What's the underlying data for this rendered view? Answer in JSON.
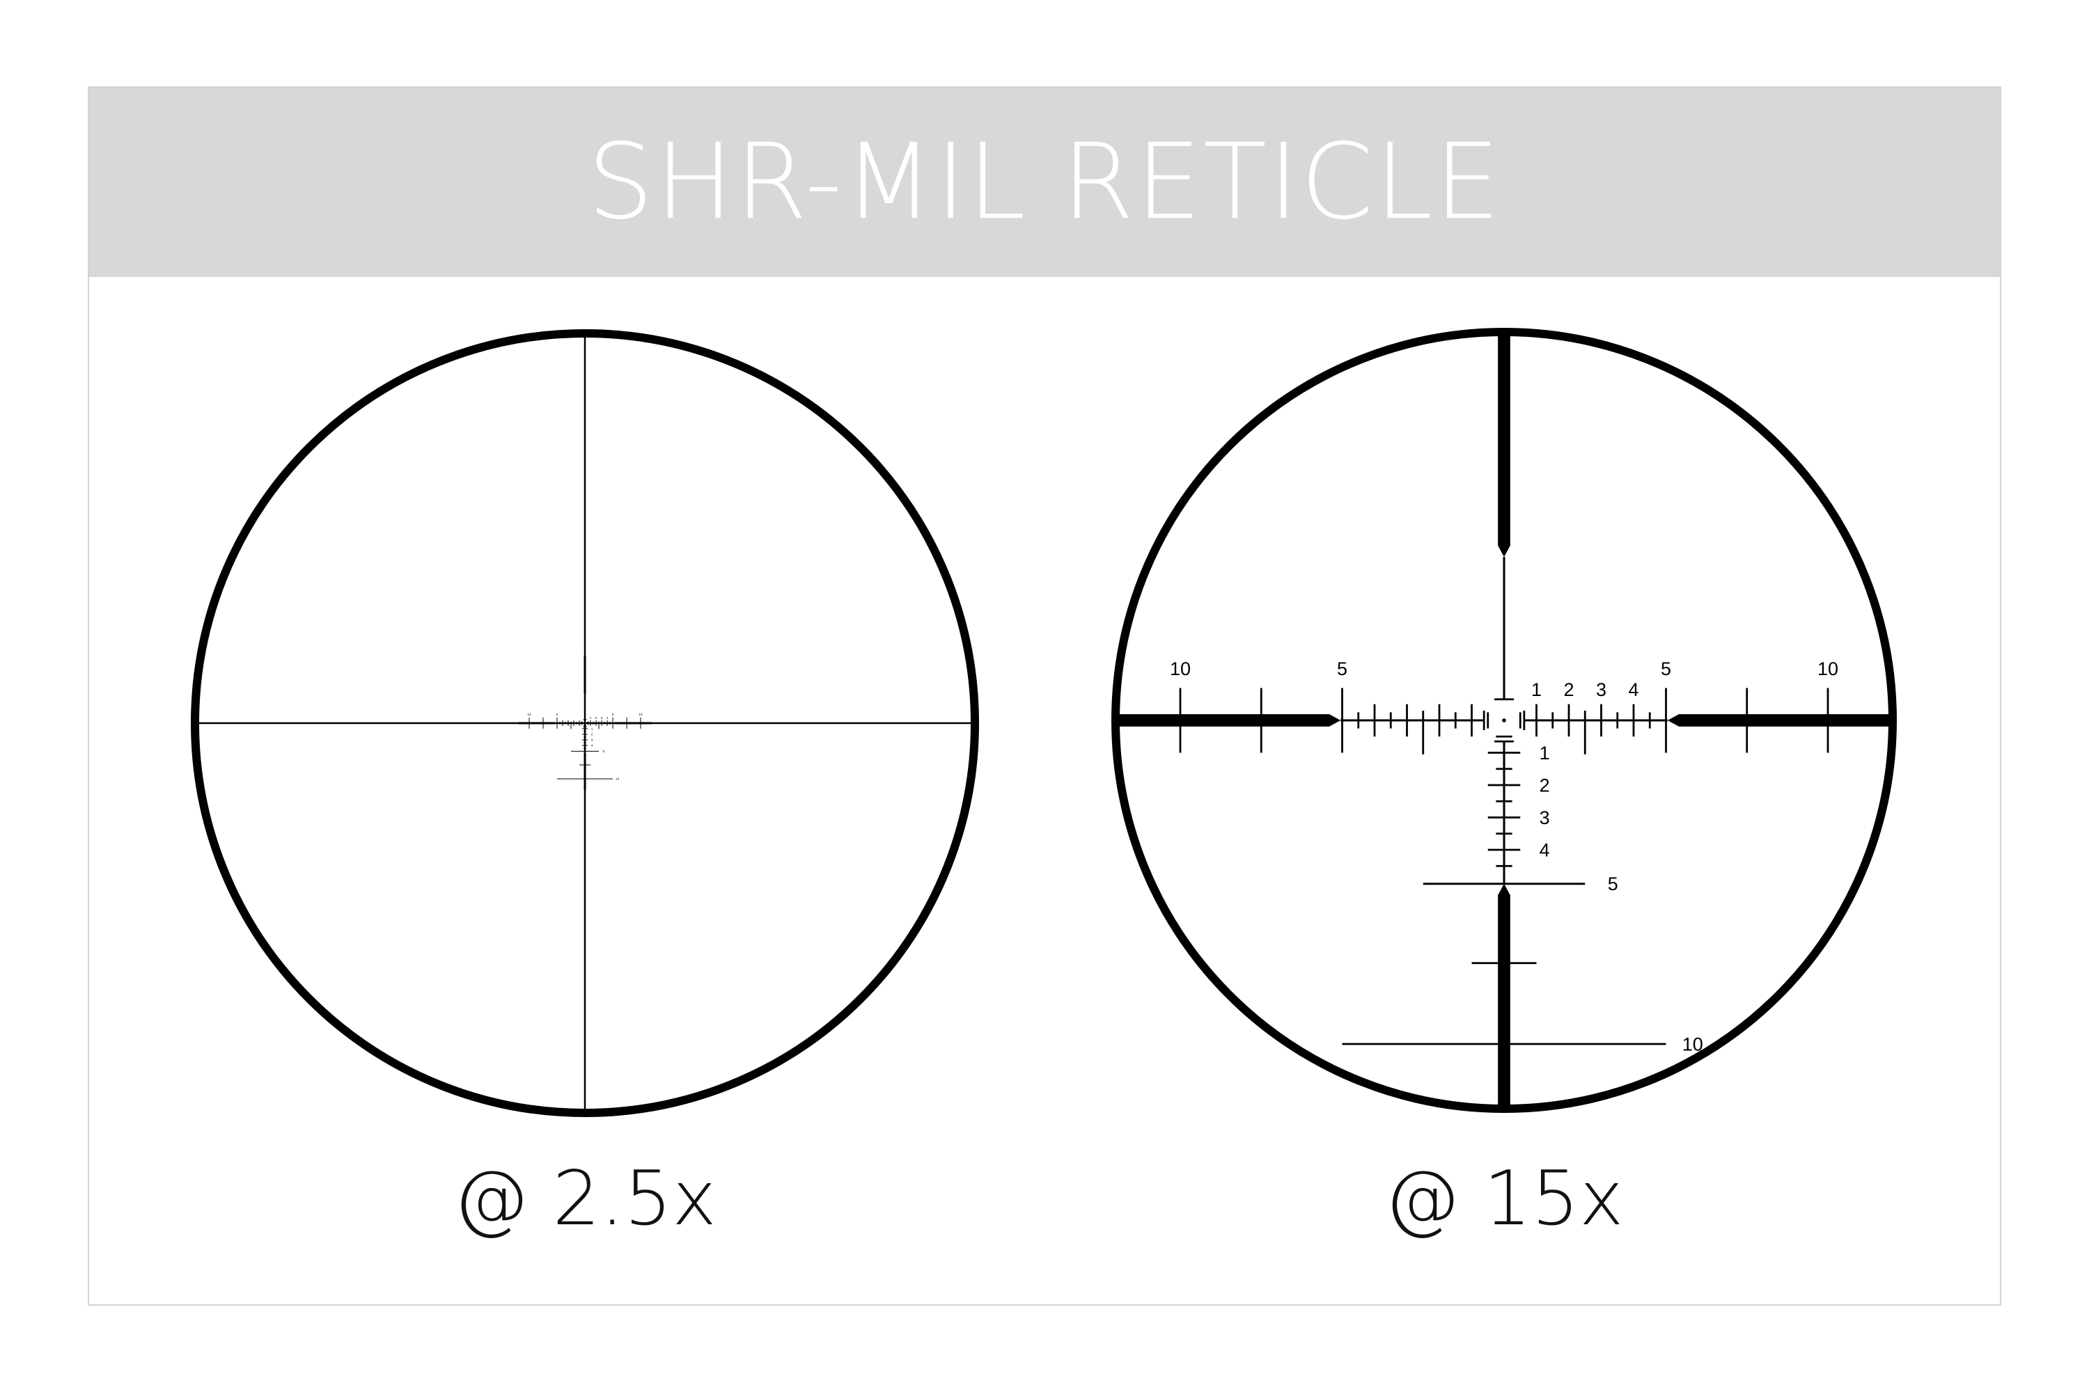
{
  "header": {
    "title": "SHR-MIL RETICLE"
  },
  "reticles": [
    {
      "caption": "@ 2.5x",
      "magnification": 2.5
    },
    {
      "caption": "@ 15x",
      "magnification": 15
    }
  ],
  "reticle_labels": {
    "horizontal_left": [
      "10",
      "5"
    ],
    "horizontal_right": [
      "1",
      "2",
      "3",
      "4",
      "5",
      "10"
    ],
    "vertical": [
      "1",
      "2",
      "3",
      "4",
      "5",
      "10"
    ]
  },
  "colors": {
    "header_bg": "#d8d8d8",
    "title": "#ffffff",
    "reticle": "#000000"
  }
}
